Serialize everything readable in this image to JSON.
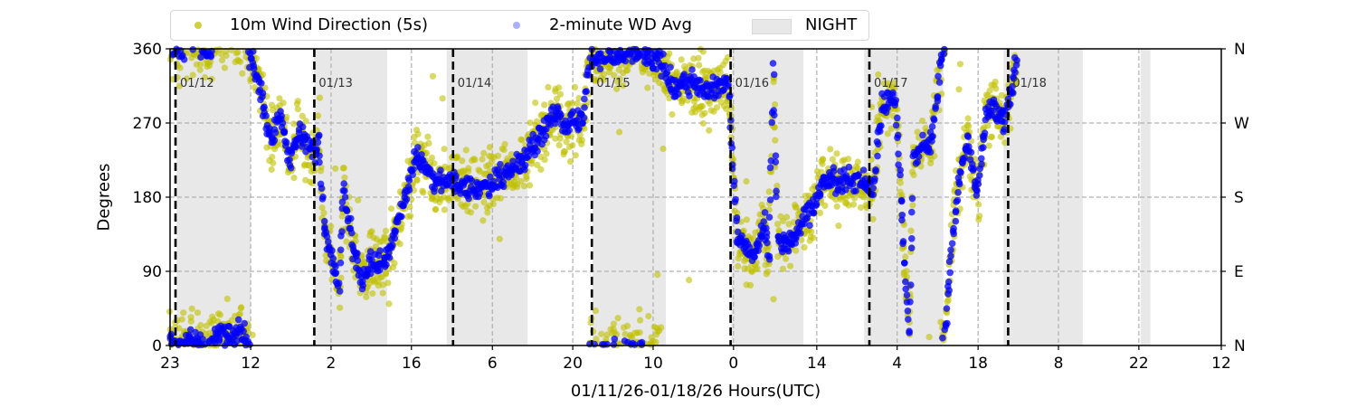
{
  "legend": {
    "series1_label": "10m Wind Direction (5s)",
    "series2_label": "2-minute WD Avg",
    "night_label": "NIGHT"
  },
  "chart_data": {
    "type": "scatter",
    "title": "",
    "xlabel": "01/11/26-01/18/26  Hours(UTC)",
    "ylabel": "Degrees",
    "x_units": "hours since 01/11/26 00:00 UTC",
    "xlim": [
      23.06,
      204.86
    ],
    "ylim": [
      0,
      360
    ],
    "grid": true,
    "legend_placement": "top-left, above plot",
    "colors": {
      "wd_5s": "#bfbf00",
      "wd_avg": "#0000ff",
      "night": "#e8e8e8",
      "day_line": "#000000"
    },
    "x_ticks": [
      {
        "h": 23.06,
        "label": "23"
      },
      {
        "h": 37.0,
        "label": "12"
      },
      {
        "h": 50.9,
        "label": "2"
      },
      {
        "h": 64.8,
        "label": "16"
      },
      {
        "h": 78.8,
        "label": "6"
      },
      {
        "h": 92.7,
        "label": "20"
      },
      {
        "h": 106.6,
        "label": "10"
      },
      {
        "h": 120.5,
        "label": "0"
      },
      {
        "h": 134.9,
        "label": "14"
      },
      {
        "h": 148.8,
        "label": "4"
      },
      {
        "h": 162.8,
        "label": "18"
      },
      {
        "h": 176.7,
        "label": "8"
      },
      {
        "h": 190.6,
        "label": "22"
      },
      {
        "h": 204.86,
        "label": "12"
      }
    ],
    "y_ticks": [
      {
        "v": 0,
        "label": "0"
      },
      {
        "v": 90,
        "label": "90"
      },
      {
        "v": 180,
        "label": "180"
      },
      {
        "v": 270,
        "label": "270"
      },
      {
        "v": 360,
        "label": "360"
      }
    ],
    "y2_ticks": [
      {
        "v": 0,
        "label": "N"
      },
      {
        "v": 90,
        "label": "E"
      },
      {
        "v": 180,
        "label": "S"
      },
      {
        "v": 270,
        "label": "W"
      },
      {
        "v": 360,
        "label": "N"
      }
    ],
    "day_markers": [
      {
        "h": 24,
        "label": "01/12"
      },
      {
        "h": 48,
        "label": "01/13"
      },
      {
        "h": 72,
        "label": "01/14"
      },
      {
        "h": 96,
        "label": "01/15"
      },
      {
        "h": 120,
        "label": "01/16"
      },
      {
        "h": 144,
        "label": "01/17"
      },
      {
        "h": 168,
        "label": "01/18"
      }
    ],
    "night_periods": [
      [
        24.2,
        37.0
      ],
      [
        47.9,
        60.6
      ],
      [
        70.9,
        84.9
      ],
      [
        96.1,
        108.8
      ],
      [
        120.1,
        132.6
      ],
      [
        143.1,
        156.8
      ],
      [
        167.2,
        180.9
      ],
      [
        190.9,
        192.6
      ]
    ],
    "series": [
      {
        "name": "2-minute WD Avg (approximate trace, degrees)",
        "points": [
          [
            23.06,
            5
          ],
          [
            24.94,
            355
          ],
          [
            27.29,
            10
          ],
          [
            29.63,
            350
          ],
          [
            31.2,
            20
          ],
          [
            33.54,
            10
          ],
          [
            35.89,
            15
          ],
          [
            37.45,
            340
          ],
          [
            39.02,
            300
          ],
          [
            40.58,
            250
          ],
          [
            42.15,
            280
          ],
          [
            43.71,
            220
          ],
          [
            45.28,
            260
          ],
          [
            46.84,
            240
          ],
          [
            48.09,
            230
          ],
          [
            48.72,
            250
          ],
          [
            49.66,
            140
          ],
          [
            50.75,
            110
          ],
          [
            52.32,
            70
          ],
          [
            53.1,
            190
          ],
          [
            54.66,
            120
          ],
          [
            56.23,
            80
          ],
          [
            57.79,
            100
          ],
          [
            59.36,
            100
          ],
          [
            60.92,
            110
          ],
          [
            62.49,
            150
          ],
          [
            64.05,
            190
          ],
          [
            65.62,
            230
          ],
          [
            67.18,
            220
          ],
          [
            68.74,
            200
          ],
          [
            71.87,
            200
          ],
          [
            75.0,
            190
          ],
          [
            78.13,
            195
          ],
          [
            81.26,
            210
          ],
          [
            84.39,
            225
          ],
          [
            86.74,
            250
          ],
          [
            89.08,
            280
          ],
          [
            92.21,
            265
          ],
          [
            94.56,
            280
          ],
          [
            95.65,
            355
          ],
          [
            96.9,
            350
          ],
          [
            103.16,
            355
          ],
          [
            107.85,
            345
          ],
          [
            110.2,
            310
          ],
          [
            112.55,
            320
          ],
          [
            117.24,
            310
          ],
          [
            119.59,
            320
          ],
          [
            120.37,
            220
          ],
          [
            121.15,
            130
          ],
          [
            122.72,
            120
          ],
          [
            124.28,
            110
          ],
          [
            125.85,
            150
          ],
          [
            126.63,
            100
          ],
          [
            126.94,
            220
          ],
          [
            127.41,
            340
          ],
          [
            127.72,
            230
          ],
          [
            128.2,
            130
          ],
          [
            129.76,
            120
          ],
          [
            131.32,
            140
          ],
          [
            134.45,
            170
          ],
          [
            136.02,
            200
          ],
          [
            139.15,
            200
          ],
          [
            142.28,
            200
          ],
          [
            144.62,
            190
          ],
          [
            146.19,
            290
          ],
          [
            148.53,
            300
          ],
          [
            149.32,
            200
          ],
          [
            150.1,
            100
          ],
          [
            150.88,
            20
          ],
          [
            151.2,
            120
          ],
          [
            151.66,
            230
          ],
          [
            153.23,
            240
          ],
          [
            154.79,
            250
          ],
          [
            156.36,
            340
          ],
          [
            157.14,
            20
          ],
          [
            157.92,
            100
          ],
          [
            159.49,
            200
          ],
          [
            161.05,
            250
          ],
          [
            162.62,
            180
          ],
          [
            164.18,
            280
          ],
          [
            165.75,
            290
          ],
          [
            167.3,
            270
          ],
          [
            168.87,
            320
          ],
          [
            169.65,
            350
          ]
        ]
      },
      {
        "name": "10m Wind Direction (5s)",
        "description_of_values": "scatter around the 2-minute average",
        "spread_deg": 30
      }
    ]
  }
}
